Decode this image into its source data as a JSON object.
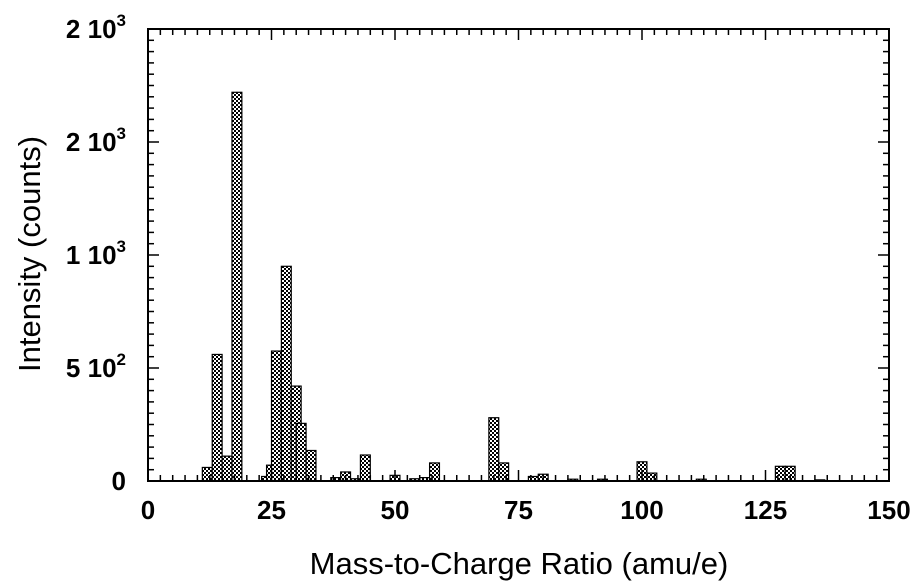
{
  "chart_data": {
    "type": "bar",
    "xlabel": "Mass-to-Charge  Ratio  (amu/e)",
    "ylabel": "Intensity  (counts)",
    "xlim": [
      0,
      150
    ],
    "ylim": [
      0,
      1750
    ],
    "grid": false,
    "x_ticks": [
      {
        "value": 0,
        "label": "0"
      },
      {
        "value": 25,
        "label": "25"
      },
      {
        "value": 50,
        "label": "50"
      },
      {
        "value": 75,
        "label": "75"
      },
      {
        "value": 100,
        "label": "100"
      },
      {
        "value": 125,
        "label": "125"
      },
      {
        "value": 150,
        "label": "150"
      }
    ],
    "y_ticks": [
      {
        "value": 0,
        "mantissa": "0",
        "exp": ""
      },
      {
        "value": 500,
        "mantissa": "5 10",
        "exp": "2"
      },
      {
        "value": 1000,
        "mantissa": "1 10",
        "exp": "3"
      },
      {
        "value": 1500,
        "mantissa": "2 10",
        "exp": "3"
      },
      {
        "value": 2000,
        "mantissa": "2 10",
        "exp": "3"
      }
    ],
    "bin_width": 2,
    "bars": [
      {
        "x": 12,
        "y": 60
      },
      {
        "x": 14,
        "y": 560
      },
      {
        "x": 16,
        "y": 110
      },
      {
        "x": 18,
        "y": 1720
      },
      {
        "x": 24,
        "y": 20
      },
      {
        "x": 25,
        "y": 70
      },
      {
        "x": 26,
        "y": 575
      },
      {
        "x": 28,
        "y": 950
      },
      {
        "x": 30,
        "y": 420
      },
      {
        "x": 31,
        "y": 255
      },
      {
        "x": 33,
        "y": 135
      },
      {
        "x": 38,
        "y": 15
      },
      {
        "x": 40,
        "y": 40
      },
      {
        "x": 42,
        "y": 10
      },
      {
        "x": 44,
        "y": 115
      },
      {
        "x": 50,
        "y": 25
      },
      {
        "x": 54,
        "y": 10
      },
      {
        "x": 56,
        "y": 15
      },
      {
        "x": 58,
        "y": 80
      },
      {
        "x": 70,
        "y": 280
      },
      {
        "x": 72,
        "y": 80
      },
      {
        "x": 78,
        "y": 20
      },
      {
        "x": 80,
        "y": 30
      },
      {
        "x": 86,
        "y": 8
      },
      {
        "x": 92,
        "y": 8
      },
      {
        "x": 100,
        "y": 85
      },
      {
        "x": 102,
        "y": 35
      },
      {
        "x": 112,
        "y": 8
      },
      {
        "x": 128,
        "y": 65
      },
      {
        "x": 130,
        "y": 65
      },
      {
        "x": 136,
        "y": 5
      }
    ]
  }
}
